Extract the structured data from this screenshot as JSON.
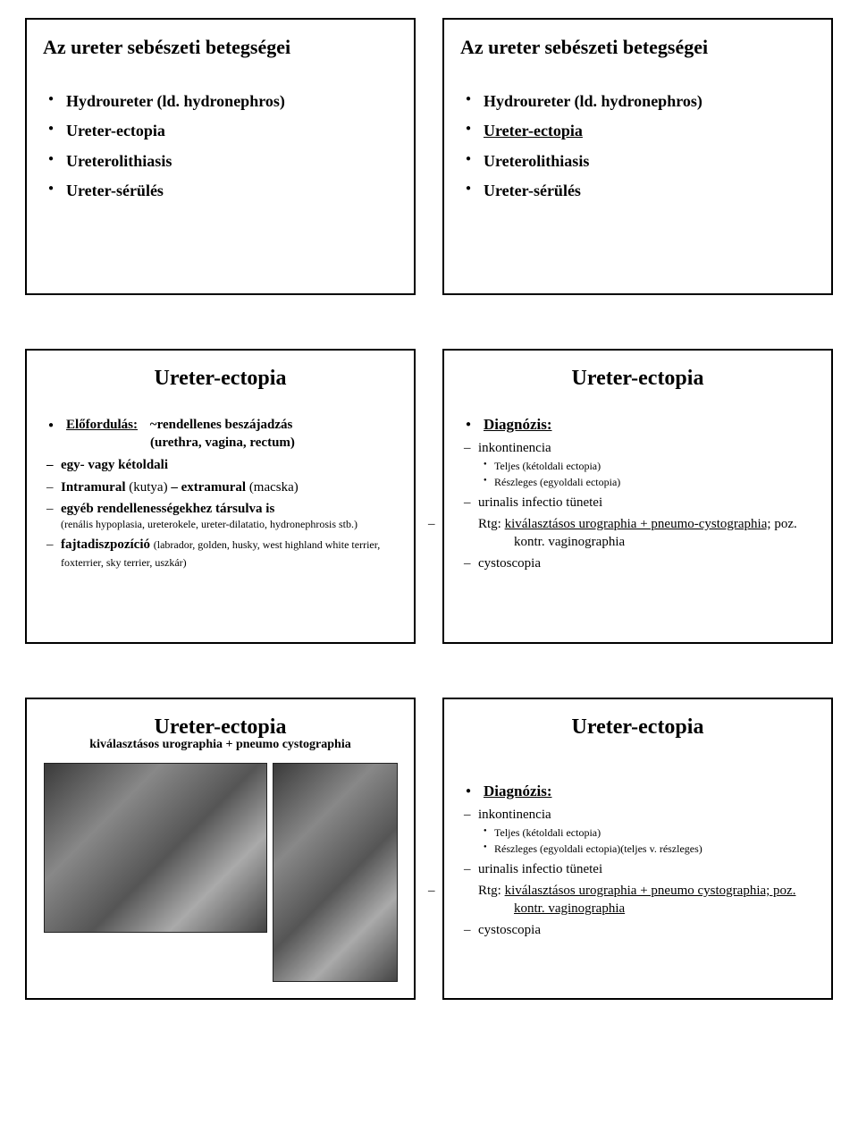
{
  "slide1": {
    "title": "Az ureter sebészeti betegségei",
    "items": [
      "Hydroureter (ld. hydronephros)",
      "Ureter-ectopia",
      "Ureterolithiasis",
      "Ureter-sérülés"
    ]
  },
  "slide2": {
    "title": "Az ureter sebészeti betegségei",
    "items": [
      {
        "text": "Hydroureter (ld. hydronephros)",
        "underline": false
      },
      {
        "text": "Ureter-ectopia",
        "underline": true
      },
      {
        "text": "Ureterolithiasis",
        "underline": false
      },
      {
        "text": "Ureter-sérülés",
        "underline": false
      }
    ]
  },
  "slide3": {
    "title": "Ureter-ectopia",
    "lead_label": "Előfordulás:",
    "lead_rest": "~rendellenes beszájadzás",
    "lead_paren": "(urethra, vagina, rectum)",
    "items": [
      {
        "html": "egy- vagy kétoldali",
        "sub": null
      },
      {
        "html": "<span class='b'>Intramural</span> <span>(kutya)</span> <span class='b'> – extramural</span> <span>(macska)</span>",
        "sub": null
      },
      {
        "html": "<span class='b'>egyéb rendellenességekhez társulva is</span>",
        "sub": "(renális hypoplasia, ureterokele, ureter-dilatatio, hydronephrosis stb.)"
      },
      {
        "html": "<span class='b'>fajtadiszpozíció</span> <span style='font-size:12px;'>(labrador, golden, husky, west highland white terrier, foxterrier, sky terrier, uszkár)</span>",
        "sub": null
      }
    ]
  },
  "slide4": {
    "title": "Ureter-ectopia",
    "diag_label": "Diagnózis:",
    "items": [
      {
        "text": "inkontinencia",
        "dots": [
          "Teljes (kétoldali ectopia)",
          "Részleges (egyoldali ectopia)"
        ]
      },
      {
        "text": "urinalis infectio tünetei",
        "dots": null
      },
      {
        "text": "Rtg: <span class='underline'>kiválasztásos urographia + pneumo-cystographia;</span> poz. kontr. vaginographia",
        "dots": null,
        "indent": true
      },
      {
        "text": "cystoscopia",
        "dots": null
      }
    ]
  },
  "slide5": {
    "title": "Ureter-ectopia",
    "subtitle": "kiválasztásos urographia + pneumo cystographia",
    "img1_alt": "lateral radiograph",
    "img2_alt": "ventrodorsal radiograph"
  },
  "slide6": {
    "title": "Ureter-ectopia",
    "diag_label": "Diagnózis:",
    "items": [
      {
        "text": "inkontinencia",
        "dots": [
          "Teljes (kétoldali ectopia)",
          "Részleges (egyoldali ectopia)(teljes v. részleges)"
        ]
      },
      {
        "text": "urinalis infectio tünetei",
        "dots": null
      },
      {
        "text": "Rtg: <span class='underline'>kiválasztásos urographia + pneumo cystographia; poz. kontr. vaginographia</span>",
        "dots": null,
        "indent": true
      },
      {
        "text": "cystoscopia",
        "dots": null
      }
    ]
  }
}
